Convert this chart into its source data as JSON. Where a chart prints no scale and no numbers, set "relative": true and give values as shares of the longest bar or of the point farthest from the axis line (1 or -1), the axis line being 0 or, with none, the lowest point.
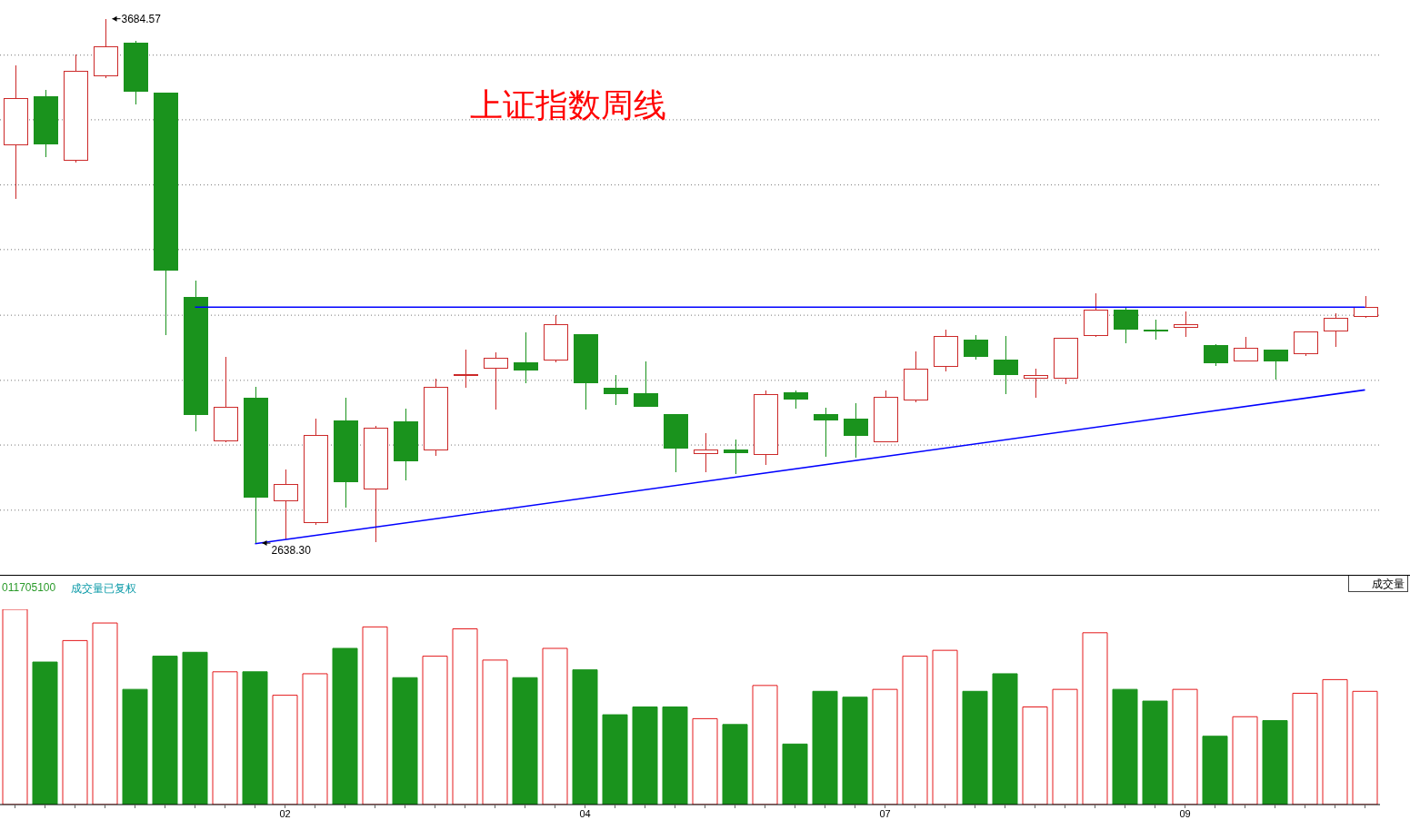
{
  "chart_data": [
    {
      "type": "candlestick",
      "title": "上证指数周线",
      "categories": [
        null,
        null,
        null,
        null,
        null,
        null,
        null,
        null,
        null,
        "02",
        null,
        null,
        null,
        null,
        null,
        null,
        null,
        null,
        null,
        "04",
        null,
        null,
        null,
        null,
        null,
        null,
        null,
        null,
        null,
        "07",
        null,
        null,
        null,
        null,
        null,
        null,
        null,
        null,
        null,
        "09",
        null,
        null,
        null,
        null,
        null,
        null
      ],
      "ohlc": [
        [
          3433,
          3592,
          3325,
          3525
        ],
        [
          3529,
          3543,
          3409,
          3435
        ],
        [
          3402,
          3614,
          3398,
          3579
        ],
        [
          3570,
          3684.57,
          3566,
          3629
        ],
        [
          3636,
          3641,
          3514,
          3540
        ],
        [
          3536,
          3537,
          3053,
          3183
        ],
        [
          3128,
          3162,
          2861,
          2895
        ],
        [
          2842,
          3010,
          2839,
          2909
        ],
        [
          2928,
          2950,
          2638.3,
          2730
        ],
        [
          2723,
          2786,
          2645,
          2755
        ],
        [
          2679,
          2886,
          2675,
          2853
        ],
        [
          2883,
          2929,
          2709,
          2760
        ],
        [
          2747,
          2873,
          2640,
          2868
        ],
        [
          2881,
          2906,
          2764,
          2803
        ],
        [
          2824,
          2966,
          2812,
          2950
        ],
        [
          2973,
          3024,
          2949,
          2974
        ],
        [
          2987,
          3019,
          2904,
          3007
        ],
        [
          2998,
          3059,
          2958,
          2983
        ],
        [
          3004,
          3093,
          2999,
          3075
        ],
        [
          3055,
          3056,
          2904,
          2958
        ],
        [
          2947,
          2973,
          2914,
          2936
        ],
        [
          2937,
          3001,
          2910,
          2911
        ],
        [
          2894,
          2895,
          2780,
          2827
        ],
        [
          2816,
          2858,
          2780,
          2824
        ],
        [
          2825,
          2845,
          2777,
          2819
        ],
        [
          2815,
          2943,
          2794,
          2935
        ],
        [
          2938,
          2943,
          2907,
          2925
        ],
        [
          2894,
          2909,
          2810,
          2884
        ],
        [
          2885,
          2917,
          2809,
          2854
        ],
        [
          2840,
          2943,
          2839,
          2930
        ],
        [
          2923,
          3021,
          2920,
          2985
        ],
        [
          2990,
          3065,
          2981,
          3050
        ],
        [
          3043,
          3054,
          3005,
          3010
        ],
        [
          3003,
          3052,
          2935,
          2975
        ],
        [
          2968,
          2987,
          2928,
          2973
        ],
        [
          2968,
          3047,
          2955,
          3047
        ],
        [
          3053,
          3136,
          3049,
          3103
        ],
        [
          3103,
          3107,
          3037,
          3066
        ],
        [
          3064,
          3085,
          3045,
          3063
        ],
        [
          3068,
          3101,
          3049,
          3074
        ],
        [
          3032,
          3036,
          2991,
          2999
        ],
        [
          3001,
          3050,
          3000,
          3028
        ],
        [
          3023,
          3024,
          2964,
          3001
        ],
        [
          3017,
          3060,
          3011,
          3060
        ],
        [
          3061,
          3097,
          3030,
          3086
        ],
        [
          3090,
          3132,
          3088,
          3109
        ]
      ],
      "colors": [
        "#cc2929",
        "#1a931d",
        "#cc2929",
        "#cc2929",
        "#1a931d",
        "#1a931d",
        "#1a931d",
        "#cc2929",
        "#1a931d",
        "#cc2929",
        "#cc2929",
        "#1a931d",
        "#cc2929",
        "#1a931d",
        "#cc2929",
        "#cc2929",
        "#cc2929",
        "#1a931d",
        "#cc2929",
        "#1a931d",
        "#1a931d",
        "#1a931d",
        "#1a931d",
        "#cc2929",
        "#1a931d",
        "#cc2929",
        "#1a931d",
        "#1a931d",
        "#1a931d",
        "#cc2929",
        "#cc2929",
        "#cc2929",
        "#1a931d",
        "#1a931d",
        "#cc2929",
        "#cc2929",
        "#cc2929",
        "#1a931d",
        "#1a931d",
        "#cc2929",
        "#1a931d",
        "#cc2929",
        "#1a931d",
        "#cc2929",
        "#cc2929",
        "#cc2929"
      ],
      "series": [
        {
          "type": "line",
          "color": "#0000ff",
          "values": [
            null,
            null,
            null,
            null,
            null,
            null,
            3109,
            null,
            null,
            null,
            null,
            null,
            null,
            null,
            null,
            null,
            null,
            null,
            null,
            null,
            null,
            null,
            null,
            null,
            null,
            null,
            null,
            null,
            null,
            null,
            null,
            null,
            null,
            null,
            null,
            null,
            null,
            null,
            null,
            null,
            null,
            null,
            null,
            null,
            null,
            3109
          ]
        },
        {
          "type": "line",
          "color": "#0000ff",
          "values": [
            null,
            null,
            null,
            null,
            null,
            null,
            null,
            null,
            2637,
            null,
            null,
            null,
            null,
            null,
            null,
            null,
            null,
            null,
            null,
            null,
            null,
            null,
            null,
            null,
            null,
            null,
            null,
            null,
            null,
            null,
            null,
            null,
            null,
            null,
            null,
            null,
            null,
            null,
            null,
            null,
            null,
            null,
            null,
            null,
            null,
            2944
          ]
        }
      ],
      "ylim": [
        2575,
        3722
      ],
      "yticks": [
        {
          "value": 3612,
          "label": null
        },
        {
          "value": 3483,
          "label": null
        },
        {
          "value": 3353,
          "label": null
        },
        {
          "value": 3224,
          "label": null
        },
        {
          "value": 3093,
          "label": null
        },
        {
          "value": 2963,
          "label": null
        },
        {
          "value": 2834,
          "label": null
        },
        {
          "value": 2704,
          "label": null
        }
      ],
      "grid": "y",
      "tick_labels": false,
      "annotations": [
        "3684.57",
        "2638.30"
      ]
    },
    {
      "type": "bar",
      "relative": true,
      "categories": [
        null,
        null,
        null,
        null,
        null,
        null,
        null,
        null,
        null,
        "02",
        null,
        null,
        null,
        null,
        null,
        null,
        null,
        null,
        null,
        "04",
        null,
        null,
        null,
        null,
        null,
        null,
        null,
        null,
        null,
        "07",
        null,
        null,
        null,
        null,
        null,
        null,
        null,
        null,
        null,
        "09",
        null,
        null,
        null,
        null,
        null,
        null
      ],
      "values": [
        1,
        0.73,
        0.84,
        0.93,
        0.59,
        0.76,
        0.78,
        0.68,
        0.68,
        0.56,
        0.67,
        0.8,
        0.91,
        0.65,
        0.76,
        0.9,
        0.74,
        0.65,
        0.8,
        0.69,
        0.46,
        0.5,
        0.5,
        0.44,
        0.41,
        0.61,
        0.31,
        0.58,
        0.55,
        0.59,
        0.76,
        0.79,
        0.58,
        0.67,
        0.5,
        0.59,
        0.88,
        0.59,
        0.53,
        0.59,
        0.35,
        0.45,
        0.43,
        0.57,
        0.64,
        0.58
      ],
      "colors": [
        "#e41a1c",
        "#1a931d",
        "#e41a1c",
        "#e41a1c",
        "#1a931d",
        "#1a931d",
        "#1a931d",
        "#e41a1c",
        "#1a931d",
        "#e41a1c",
        "#e41a1c",
        "#1a931d",
        "#e41a1c",
        "#1a931d",
        "#e41a1c",
        "#e41a1c",
        "#e41a1c",
        "#1a931d",
        "#e41a1c",
        "#1a931d",
        "#1a931d",
        "#1a931d",
        "#1a931d",
        "#e41a1c",
        "#1a931d",
        "#e41a1c",
        "#1a931d",
        "#1a931d",
        "#1a931d",
        "#e41a1c",
        "#e41a1c",
        "#e41a1c",
        "#1a931d",
        "#1a931d",
        "#e41a1c",
        "#e41a1c",
        "#e41a1c",
        "#1a931d",
        "#1a931d",
        "#e41a1c",
        "#1a931d",
        "#e41a1c",
        "#1a931d",
        "#e41a1c",
        "#e41a1c",
        "#e41a1c"
      ],
      "tick_labels": "x",
      "annotations": [
        "011705100",
        "成交量已复权",
        "成交量"
      ]
    }
  ]
}
